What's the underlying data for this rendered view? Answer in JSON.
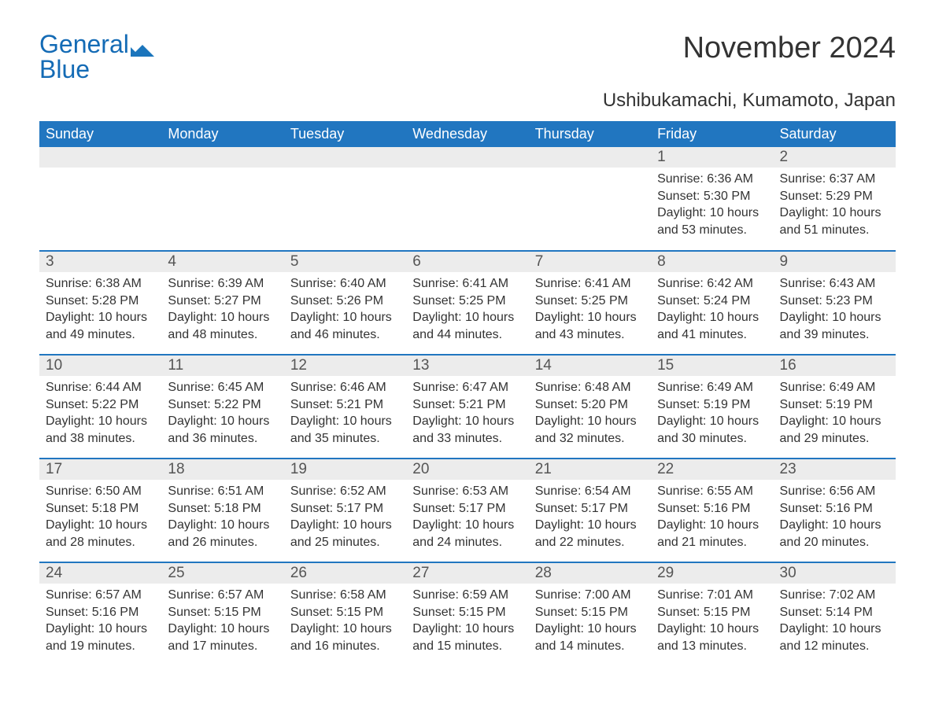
{
  "logo": {
    "text_general": "General",
    "text_blue": "Blue",
    "accent_color": "#1b75bc"
  },
  "title": "November 2024",
  "location": "Ushibukamachi, Kumamoto, Japan",
  "colors": {
    "header_bg": "#2176c0",
    "header_text": "#ffffff",
    "row_accent": "#2176c0",
    "daynum_bg": "#ececec",
    "text": "#333333"
  },
  "day_headers": [
    "Sunday",
    "Monday",
    "Tuesday",
    "Wednesday",
    "Thursday",
    "Friday",
    "Saturday"
  ],
  "weeks": [
    [
      {
        "empty": true
      },
      {
        "empty": true
      },
      {
        "empty": true
      },
      {
        "empty": true
      },
      {
        "empty": true
      },
      {
        "day": "1",
        "sunrise": "Sunrise: 6:36 AM",
        "sunset": "Sunset: 5:30 PM",
        "daylight": "Daylight: 10 hours and 53 minutes."
      },
      {
        "day": "2",
        "sunrise": "Sunrise: 6:37 AM",
        "sunset": "Sunset: 5:29 PM",
        "daylight": "Daylight: 10 hours and 51 minutes."
      }
    ],
    [
      {
        "day": "3",
        "sunrise": "Sunrise: 6:38 AM",
        "sunset": "Sunset: 5:28 PM",
        "daylight": "Daylight: 10 hours and 49 minutes."
      },
      {
        "day": "4",
        "sunrise": "Sunrise: 6:39 AM",
        "sunset": "Sunset: 5:27 PM",
        "daylight": "Daylight: 10 hours and 48 minutes."
      },
      {
        "day": "5",
        "sunrise": "Sunrise: 6:40 AM",
        "sunset": "Sunset: 5:26 PM",
        "daylight": "Daylight: 10 hours and 46 minutes."
      },
      {
        "day": "6",
        "sunrise": "Sunrise: 6:41 AM",
        "sunset": "Sunset: 5:25 PM",
        "daylight": "Daylight: 10 hours and 44 minutes."
      },
      {
        "day": "7",
        "sunrise": "Sunrise: 6:41 AM",
        "sunset": "Sunset: 5:25 PM",
        "daylight": "Daylight: 10 hours and 43 minutes."
      },
      {
        "day": "8",
        "sunrise": "Sunrise: 6:42 AM",
        "sunset": "Sunset: 5:24 PM",
        "daylight": "Daylight: 10 hours and 41 minutes."
      },
      {
        "day": "9",
        "sunrise": "Sunrise: 6:43 AM",
        "sunset": "Sunset: 5:23 PM",
        "daylight": "Daylight: 10 hours and 39 minutes."
      }
    ],
    [
      {
        "day": "10",
        "sunrise": "Sunrise: 6:44 AM",
        "sunset": "Sunset: 5:22 PM",
        "daylight": "Daylight: 10 hours and 38 minutes."
      },
      {
        "day": "11",
        "sunrise": "Sunrise: 6:45 AM",
        "sunset": "Sunset: 5:22 PM",
        "daylight": "Daylight: 10 hours and 36 minutes."
      },
      {
        "day": "12",
        "sunrise": "Sunrise: 6:46 AM",
        "sunset": "Sunset: 5:21 PM",
        "daylight": "Daylight: 10 hours and 35 minutes."
      },
      {
        "day": "13",
        "sunrise": "Sunrise: 6:47 AM",
        "sunset": "Sunset: 5:21 PM",
        "daylight": "Daylight: 10 hours and 33 minutes."
      },
      {
        "day": "14",
        "sunrise": "Sunrise: 6:48 AM",
        "sunset": "Sunset: 5:20 PM",
        "daylight": "Daylight: 10 hours and 32 minutes."
      },
      {
        "day": "15",
        "sunrise": "Sunrise: 6:49 AM",
        "sunset": "Sunset: 5:19 PM",
        "daylight": "Daylight: 10 hours and 30 minutes."
      },
      {
        "day": "16",
        "sunrise": "Sunrise: 6:49 AM",
        "sunset": "Sunset: 5:19 PM",
        "daylight": "Daylight: 10 hours and 29 minutes."
      }
    ],
    [
      {
        "day": "17",
        "sunrise": "Sunrise: 6:50 AM",
        "sunset": "Sunset: 5:18 PM",
        "daylight": "Daylight: 10 hours and 28 minutes."
      },
      {
        "day": "18",
        "sunrise": "Sunrise: 6:51 AM",
        "sunset": "Sunset: 5:18 PM",
        "daylight": "Daylight: 10 hours and 26 minutes."
      },
      {
        "day": "19",
        "sunrise": "Sunrise: 6:52 AM",
        "sunset": "Sunset: 5:17 PM",
        "daylight": "Daylight: 10 hours and 25 minutes."
      },
      {
        "day": "20",
        "sunrise": "Sunrise: 6:53 AM",
        "sunset": "Sunset: 5:17 PM",
        "daylight": "Daylight: 10 hours and 24 minutes."
      },
      {
        "day": "21",
        "sunrise": "Sunrise: 6:54 AM",
        "sunset": "Sunset: 5:17 PM",
        "daylight": "Daylight: 10 hours and 22 minutes."
      },
      {
        "day": "22",
        "sunrise": "Sunrise: 6:55 AM",
        "sunset": "Sunset: 5:16 PM",
        "daylight": "Daylight: 10 hours and 21 minutes."
      },
      {
        "day": "23",
        "sunrise": "Sunrise: 6:56 AM",
        "sunset": "Sunset: 5:16 PM",
        "daylight": "Daylight: 10 hours and 20 minutes."
      }
    ],
    [
      {
        "day": "24",
        "sunrise": "Sunrise: 6:57 AM",
        "sunset": "Sunset: 5:16 PM",
        "daylight": "Daylight: 10 hours and 19 minutes."
      },
      {
        "day": "25",
        "sunrise": "Sunrise: 6:57 AM",
        "sunset": "Sunset: 5:15 PM",
        "daylight": "Daylight: 10 hours and 17 minutes."
      },
      {
        "day": "26",
        "sunrise": "Sunrise: 6:58 AM",
        "sunset": "Sunset: 5:15 PM",
        "daylight": "Daylight: 10 hours and 16 minutes."
      },
      {
        "day": "27",
        "sunrise": "Sunrise: 6:59 AM",
        "sunset": "Sunset: 5:15 PM",
        "daylight": "Daylight: 10 hours and 15 minutes."
      },
      {
        "day": "28",
        "sunrise": "Sunrise: 7:00 AM",
        "sunset": "Sunset: 5:15 PM",
        "daylight": "Daylight: 10 hours and 14 minutes."
      },
      {
        "day": "29",
        "sunrise": "Sunrise: 7:01 AM",
        "sunset": "Sunset: 5:15 PM",
        "daylight": "Daylight: 10 hours and 13 minutes."
      },
      {
        "day": "30",
        "sunrise": "Sunrise: 7:02 AM",
        "sunset": "Sunset: 5:14 PM",
        "daylight": "Daylight: 10 hours and 12 minutes."
      }
    ]
  ]
}
